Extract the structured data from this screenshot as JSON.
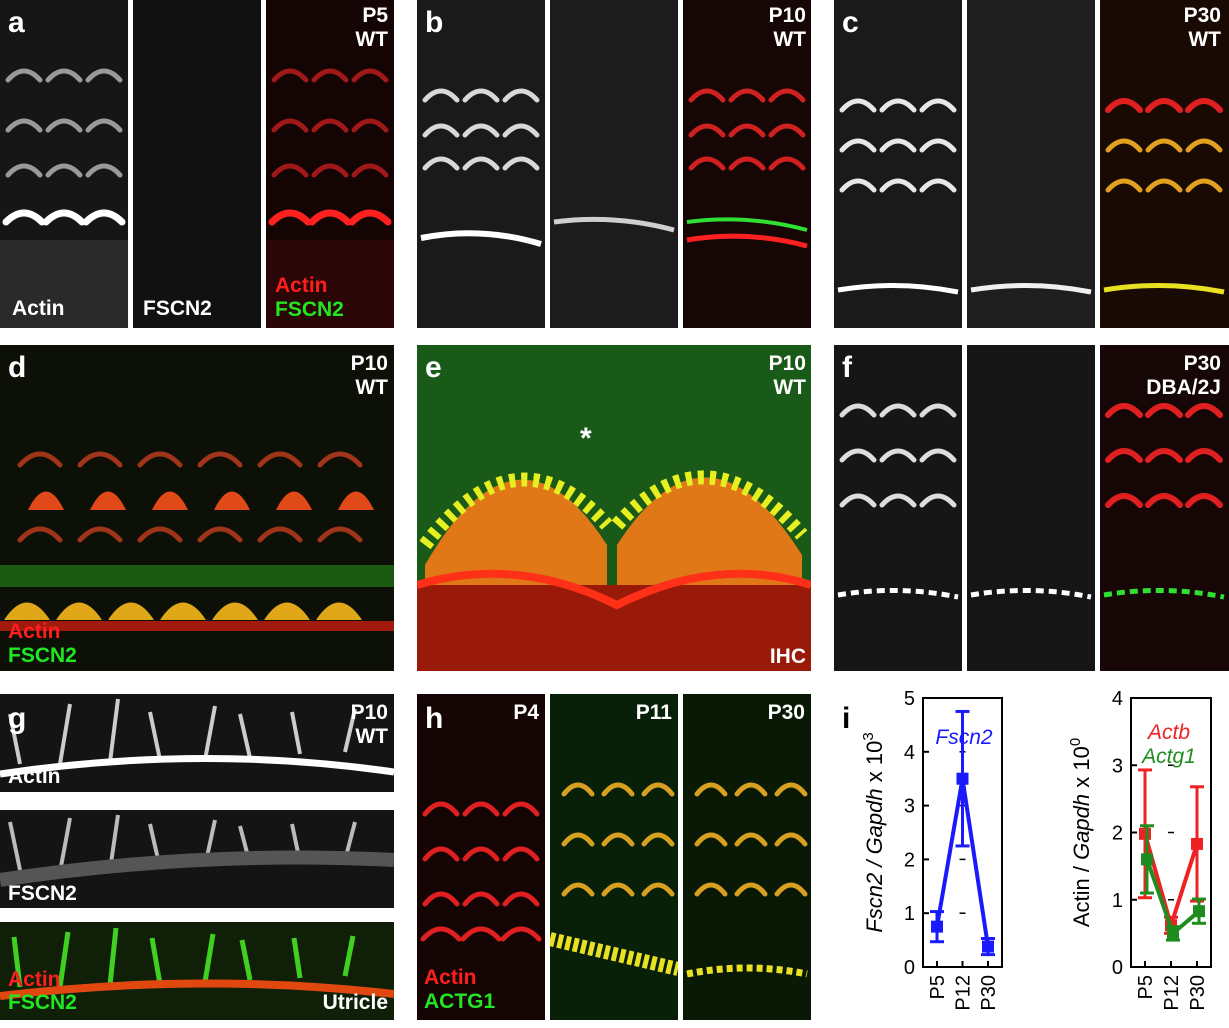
{
  "panels": {
    "a": {
      "letter": "a",
      "age": "P5",
      "genotype": "WT",
      "ch1": "Actin",
      "ch2": "FSCN2",
      "m1": "Actin",
      "m2": "FSCN2"
    },
    "b": {
      "letter": "b",
      "age": "P10",
      "genotype": "WT"
    },
    "c": {
      "letter": "c",
      "age": "P30",
      "genotype": "WT"
    },
    "d": {
      "letter": "d",
      "age": "P10",
      "genotype": "WT",
      "m1": "Actin",
      "m2": "FSCN2"
    },
    "e": {
      "letter": "e",
      "age": "P10",
      "genotype": "WT",
      "region": "IHC",
      "asterisk": "*"
    },
    "f": {
      "letter": "f",
      "age": "P30",
      "genotype": "DBA/2J"
    },
    "g": {
      "letter": "g",
      "age": "P10",
      "genotype": "WT",
      "ch1": "Actin",
      "ch2": "FSCN2",
      "m1": "Actin",
      "m2": "FSCN2",
      "region": "Utricle"
    },
    "h": {
      "letter": "h",
      "age1": "P4",
      "age2": "P11",
      "age3": "P30",
      "m1": "Actin",
      "m2": "ACTG1"
    },
    "i": {
      "letter": "i"
    }
  },
  "colors": {
    "actin_red": "#ff1e1e",
    "fscn2_green": "#22e622",
    "fscn2_blue": "#1a1aff",
    "actb_red": "#ee2222",
    "actg1_green": "#1e8c1e"
  },
  "chart_data": [
    {
      "type": "line",
      "categories": [
        "P5",
        "P12",
        "P30"
      ],
      "ylabel": "Fscn2 / Gapdh  x 10³",
      "ylabel_parts": {
        "italic": "Fscn2 / Gapdh",
        "rest": "x 10",
        "exp": "3"
      },
      "ylim": [
        0,
        5
      ],
      "yticks": [
        "0",
        "1",
        "2",
        "3",
        "4",
        "5"
      ],
      "series": [
        {
          "name": "Fscn2",
          "values": [
            0.75,
            3.5,
            0.38
          ],
          "err": [
            0.28,
            1.25,
            0.15
          ],
          "color": "#1a1aff"
        }
      ]
    },
    {
      "type": "line",
      "categories": [
        "P5",
        "P12",
        "P30"
      ],
      "ylabel": "Actin / Gapdh  x 10⁰",
      "ylabel_parts": {
        "plain": "Actin / ",
        "italic": "Gapdh",
        "rest": "x 10",
        "exp": "0"
      },
      "ylim": [
        0,
        4
      ],
      "yticks": [
        "0",
        "1",
        "2",
        "3",
        "4"
      ],
      "series": [
        {
          "name": "Actb",
          "values": [
            1.98,
            0.62,
            1.83
          ],
          "err": [
            0.95,
            0.12,
            0.85
          ],
          "color": "#ee2222"
        },
        {
          "name": "Actg1",
          "values": [
            1.6,
            0.5,
            0.83
          ],
          "err": [
            0.5,
            0.1,
            0.18
          ],
          "color": "#1e8c1e"
        }
      ]
    }
  ]
}
